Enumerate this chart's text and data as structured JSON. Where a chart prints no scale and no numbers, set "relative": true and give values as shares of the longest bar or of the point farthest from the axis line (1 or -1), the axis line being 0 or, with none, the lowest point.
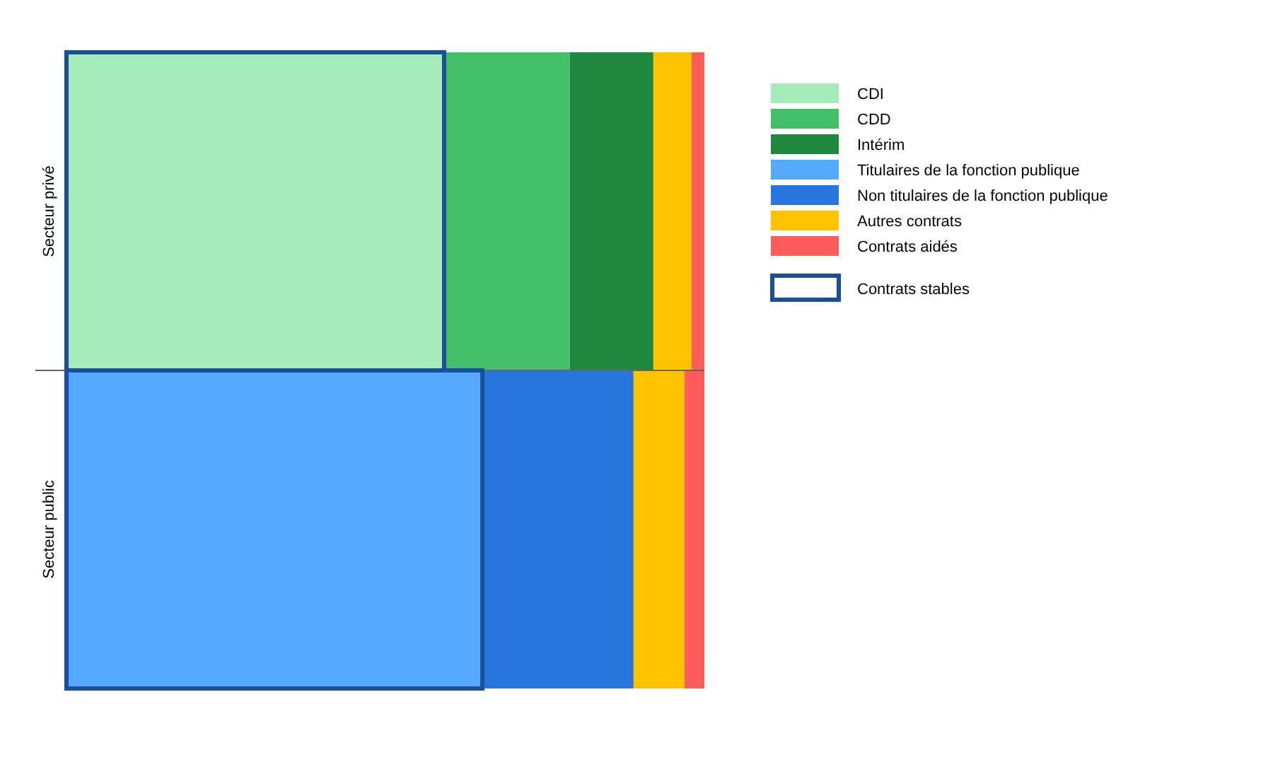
{
  "chart_data": {
    "type": "bar",
    "orientation": "horizontal",
    "stacked": true,
    "relative": true,
    "legend": "right",
    "categories": [
      "Secteur privé",
      "Secteur public"
    ],
    "series": [
      {
        "name": "CDI",
        "color": "#a6ecb8",
        "values": [
          0.592,
          null
        ]
      },
      {
        "name": "CDD",
        "color": "#43bf67",
        "values": [
          0.197,
          null
        ]
      },
      {
        "name": "Intérim",
        "color": "#1e883e",
        "values": [
          0.131,
          null
        ]
      },
      {
        "name": "Titulaires de la fonction publique",
        "color": "#55aaff",
        "values": [
          null,
          0.652
        ]
      },
      {
        "name": "Non titulaires de la fonction publique",
        "color": "#2676dd",
        "values": [
          null,
          0.237
        ]
      },
      {
        "name": "Autres contrats",
        "color": "#ffc300",
        "values": [
          0.06,
          0.08
        ]
      },
      {
        "name": "Contrats aidés",
        "color": "#ff5c5c",
        "values": [
          0.02,
          0.031
        ]
      }
    ],
    "annotations": [
      "Contrats stables"
    ]
  }
}
